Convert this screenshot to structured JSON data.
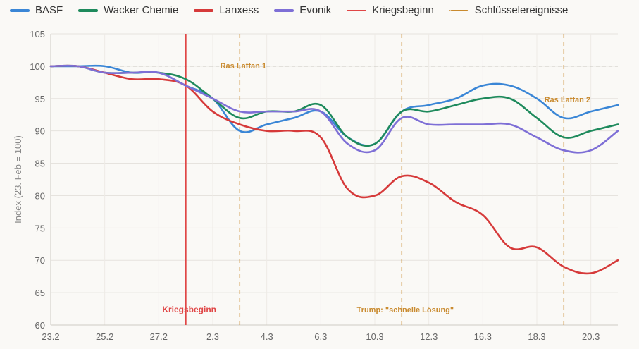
{
  "chart_data": {
    "type": "line",
    "ylabel": "Index (23. Feb = 100)",
    "xlabel": "",
    "ylim": [
      60,
      105
    ],
    "yticks": [
      60,
      65,
      70,
      75,
      80,
      85,
      90,
      95,
      100,
      105
    ],
    "x_days": [
      0,
      1,
      2,
      3,
      4,
      5,
      6,
      7,
      8,
      9,
      10,
      11,
      12,
      13,
      14,
      15,
      16,
      17,
      18,
      19,
      20,
      21
    ],
    "x_tick_labels": [
      "23.2",
      "25.2",
      "27.2",
      "2.3",
      "4.3",
      "6.3",
      "10.3",
      "12.3",
      "16.3",
      "18.3",
      "20.3"
    ],
    "series": [
      {
        "name": "BASF",
        "color": "#3a86d6",
        "values": [
          100,
          100,
          100,
          99,
          99,
          97,
          95,
          90,
          91,
          92,
          93,
          89,
          88,
          93,
          94,
          95,
          97,
          97,
          95,
          92,
          93,
          94
        ]
      },
      {
        "name": "Wacker Chemie",
        "color": "#1e8a5c",
        "values": [
          100,
          100,
          99,
          99,
          99,
          98,
          95,
          92,
          93,
          93,
          94,
          89,
          88,
          93,
          93,
          94,
          95,
          95,
          92,
          89,
          90,
          91
        ]
      },
      {
        "name": "Lanxess",
        "color": "#d63a3a",
        "values": [
          100,
          100,
          99,
          98,
          98,
          97,
          93,
          91,
          90,
          90,
          89,
          81,
          80,
          83,
          82,
          79,
          77,
          72,
          72,
          69,
          68,
          70
        ]
      },
      {
        "name": "Evonik",
        "color": "#7e6fd6",
        "values": [
          100,
          100,
          99,
          99,
          99,
          97,
          95,
          93,
          93,
          93,
          93,
          88,
          87,
          92,
          91,
          91,
          91,
          91,
          89,
          87,
          87,
          90
        ]
      }
    ],
    "events": {
      "war_start": {
        "legend": "Kriegsbeginn",
        "label": "Kriegsbeginn",
        "x": 5.0,
        "color": "#e04646"
      },
      "key_events_legend": "Schlüsselereignisse",
      "key_events_color": "#c98a2e",
      "key_events": [
        {
          "x": 7.0,
          "label": "Ras Laffan 1",
          "label_pos": "top"
        },
        {
          "x": 13.0,
          "label": "Trump: \"schnelle Lösung\"",
          "label_pos": "bottom"
        },
        {
          "x": 19.0,
          "label": "Ras Laffan 2",
          "label_pos": "upper"
        }
      ]
    },
    "reference_line": 100,
    "grid": true
  }
}
